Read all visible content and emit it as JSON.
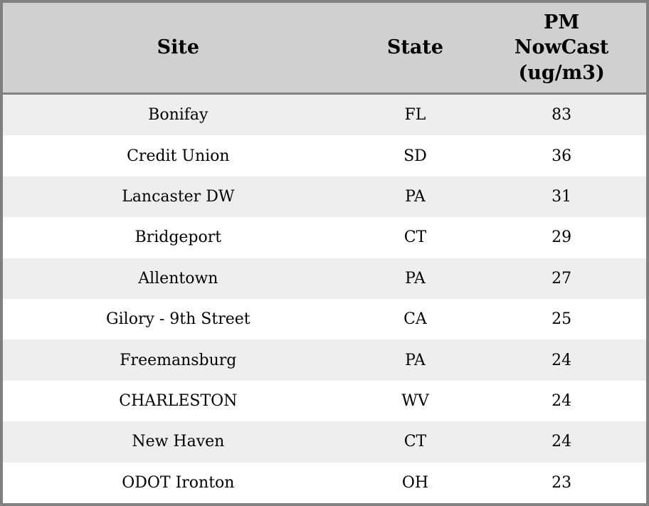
{
  "colors": {
    "border": "#808080",
    "header_bg": "#d0d0d0",
    "row_alt_bg": "#eeeeee",
    "row_bg": "#ffffff",
    "text": "#000000"
  },
  "chart_data": {
    "type": "table",
    "title": "",
    "header": {
      "site": "Site",
      "state": "State",
      "pm": "PM\nNowCast\n(ug/m3)",
      "pm_full_label": "PM NowCast (ug/m3)"
    },
    "rows": [
      {
        "site": "Bonifay",
        "state": "FL",
        "pm": "83"
      },
      {
        "site": "Credit Union",
        "state": "SD",
        "pm": "36"
      },
      {
        "site": "Lancaster DW",
        "state": "PA",
        "pm": "31"
      },
      {
        "site": "Bridgeport",
        "state": "CT",
        "pm": "29"
      },
      {
        "site": "Allentown",
        "state": "PA",
        "pm": "27"
      },
      {
        "site": "Gilory - 9th Street",
        "state": "CA",
        "pm": "25"
      },
      {
        "site": "Freemansburg",
        "state": "PA",
        "pm": "24"
      },
      {
        "site": "CHARLESTON",
        "state": "WV",
        "pm": "24"
      },
      {
        "site": "New Haven",
        "state": "CT",
        "pm": "24"
      },
      {
        "site": "ODOT Ironton",
        "state": "OH",
        "pm": "23"
      }
    ]
  }
}
